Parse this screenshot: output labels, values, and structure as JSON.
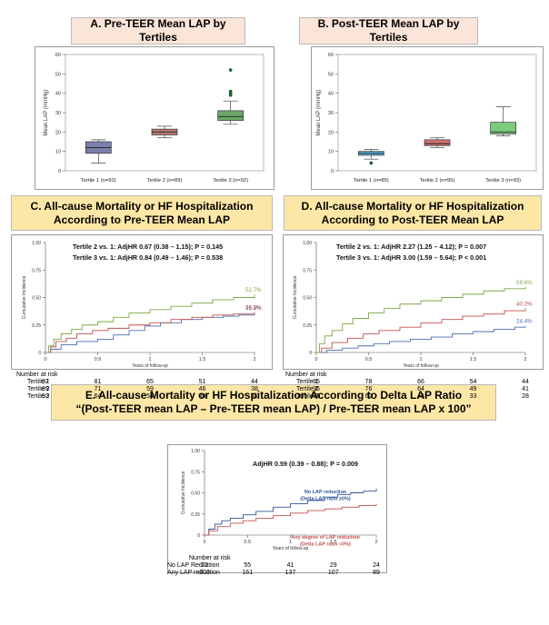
{
  "headers": {
    "a": "A. Pre-TEER Mean LAP by Tertiles",
    "b": "B. Post-TEER Mean LAP by Tertiles",
    "c_line1": "C. All-cause Mortality or HF Hospitalization",
    "c_line2": "According to Pre-TEER Mean LAP",
    "d_line1": "D. All-cause Mortality or HF Hospitalization",
    "d_line2": "According to Post-TEER Mean LAP",
    "e_line1": "E. All-cause Mortality or HF Hospitalization According to Delta LAP Ratio",
    "e_line2": "“(Post-TEER mean LAP – Pre-TEER mean LAP) / Pre-TEER mean LAP x 100”"
  },
  "chart_data": [
    {
      "id": "A",
      "type": "box",
      "ylabel": "Mean LAP (mmHg)",
      "ylim": [
        0,
        60
      ],
      "yticks": [
        0,
        10,
        20,
        30,
        40,
        50,
        60
      ],
      "categories": [
        "Tertile 1 (n=92)",
        "Tertile 2 (n=89)",
        "Tertile 3 (n=92)"
      ],
      "colors": [
        "#7a7fae",
        "#b77b73",
        "#6aa86a"
      ],
      "boxes": [
        {
          "min": 4,
          "q1": 9,
          "median": 12,
          "q3": 15,
          "max": 16,
          "outliers": []
        },
        {
          "min": 17,
          "q1": 18.5,
          "median": 20,
          "q3": 21.5,
          "max": 23,
          "outliers": []
        },
        {
          "min": 24,
          "q1": 26,
          "median": 28,
          "q3": 31,
          "max": 36,
          "outliers": [
            39,
            40,
            41,
            52
          ]
        }
      ]
    },
    {
      "id": "B",
      "type": "box",
      "ylabel": "Mean LAP (mmHg)",
      "ylim": [
        0,
        60
      ],
      "yticks": [
        0,
        10,
        20,
        30,
        40,
        50,
        60
      ],
      "categories": [
        "Tertile 1 (n=85)",
        "Tertile 2 (n=95)",
        "Tertile 3 (n=93)"
      ],
      "colors": [
        "#5ab6dd",
        "#d07070",
        "#7dcb7d"
      ],
      "boxes": [
        {
          "min": 6,
          "q1": 8,
          "median": 9,
          "q3": 10,
          "max": 11,
          "outliers": [
            4
          ]
        },
        {
          "min": 12,
          "q1": 13,
          "median": 14,
          "q3": 16,
          "max": 17,
          "outliers": []
        },
        {
          "min": 18,
          "q1": 19,
          "median": 20,
          "q3": 25,
          "max": 33,
          "outliers": []
        }
      ]
    },
    {
      "id": "C",
      "type": "line",
      "ylabel": "Cumulative Incidence",
      "xlabel": "Years of follow-up",
      "xlim": [
        0,
        2
      ],
      "ylim": [
        0,
        1
      ],
      "xticks": [
        0,
        0.5,
        1,
        1.5,
        2
      ],
      "yticks": [
        0,
        0.25,
        0.5,
        0.75,
        1
      ],
      "ytick_labels": [
        "0",
        "0.25",
        "0.50",
        "0.75",
        "1.00"
      ],
      "annotation_lines": [
        "Tertile 2 vs. 1: AdjHR 0.67 (0.38 – 1.15); P = 0.145",
        "Tertile 3 vs. 1: AdjHR 0.84 (0.49 – 1.46); P = 0.538"
      ],
      "series": [
        {
          "name": "Tertile 1",
          "color": "#4a6fb5",
          "end_label": "36.2%",
          "x": [
            0,
            0.05,
            0.15,
            0.3,
            0.5,
            0.65,
            0.8,
            0.95,
            1.1,
            1.3,
            1.5,
            1.7,
            1.85,
            2.0
          ],
          "y": [
            0,
            0.03,
            0.07,
            0.1,
            0.12,
            0.16,
            0.2,
            0.24,
            0.27,
            0.3,
            0.32,
            0.33,
            0.34,
            0.362
          ]
        },
        {
          "name": "Tertile 2",
          "color": "#c0504d",
          "end_label": "36.8%",
          "x": [
            0,
            0.05,
            0.1,
            0.2,
            0.3,
            0.45,
            0.6,
            0.8,
            1.0,
            1.2,
            1.4,
            1.6,
            1.8,
            2.0
          ],
          "y": [
            0,
            0.05,
            0.1,
            0.13,
            0.17,
            0.2,
            0.22,
            0.25,
            0.27,
            0.3,
            0.32,
            0.34,
            0.35,
            0.368
          ]
        },
        {
          "name": "Tertile 3",
          "color": "#7fa83e",
          "end_label": "52.7%",
          "x": [
            0,
            0.03,
            0.08,
            0.15,
            0.25,
            0.35,
            0.5,
            0.65,
            0.8,
            1.0,
            1.2,
            1.4,
            1.6,
            1.8,
            2.0
          ],
          "y": [
            0,
            0.06,
            0.12,
            0.17,
            0.21,
            0.25,
            0.28,
            0.32,
            0.36,
            0.39,
            0.42,
            0.45,
            0.48,
            0.5,
            0.527
          ]
        }
      ],
      "risk": {
        "title": "Number at risk",
        "rows": [
          {
            "label": "Tertile 1",
            "values": [
              "92",
              "81",
              "65",
              "51",
              "44"
            ]
          },
          {
            "label": "Tertile 2",
            "values": [
              "89",
              "71",
              "59",
              "46",
              "38"
            ]
          },
          {
            "label": "Tertile 3",
            "values": [
              "92",
              "64",
              "54",
              "39",
              "31"
            ]
          }
        ]
      }
    },
    {
      "id": "D",
      "type": "line",
      "ylabel": "Cumulative Incidence",
      "xlabel": "Years of follow-up",
      "xlim": [
        0,
        2
      ],
      "ylim": [
        0,
        1
      ],
      "xticks": [
        0,
        0.5,
        1,
        1.5,
        2
      ],
      "yticks": [
        0,
        0.25,
        0.5,
        0.75,
        1
      ],
      "ytick_labels": [
        "0",
        "0.25",
        "0.50",
        "0.75",
        "1.00"
      ],
      "annotation_lines": [
        "Tertile 2 vs. 1: AdjHR 2.27 (1.25 – 4.12); P = 0.007",
        "Tertile 3 vs. 1: AdjHR 3.00 (1.59 – 5.64); P < 0.001"
      ],
      "series": [
        {
          "name": "Tertile 1",
          "color": "#4a6fb5",
          "end_label": "24.4%",
          "x": [
            0,
            0.1,
            0.25,
            0.4,
            0.55,
            0.7,
            0.9,
            1.1,
            1.3,
            1.5,
            1.7,
            1.9,
            2.0
          ],
          "y": [
            0,
            0.02,
            0.04,
            0.06,
            0.08,
            0.1,
            0.12,
            0.14,
            0.17,
            0.19,
            0.21,
            0.23,
            0.244
          ]
        },
        {
          "name": "Tertile 2",
          "color": "#c0504d",
          "end_label": "40.2%",
          "x": [
            0,
            0.05,
            0.15,
            0.3,
            0.45,
            0.6,
            0.8,
            1.0,
            1.2,
            1.4,
            1.6,
            1.8,
            2.0
          ],
          "y": [
            0,
            0.04,
            0.09,
            0.13,
            0.17,
            0.2,
            0.23,
            0.27,
            0.3,
            0.33,
            0.35,
            0.38,
            0.402
          ]
        },
        {
          "name": "Tertile 3",
          "color": "#7fa83e",
          "end_label": "59.6%",
          "x": [
            0,
            0.03,
            0.08,
            0.15,
            0.25,
            0.35,
            0.5,
            0.65,
            0.8,
            1.0,
            1.2,
            1.4,
            1.6,
            1.8,
            2.0
          ],
          "y": [
            0,
            0.08,
            0.15,
            0.2,
            0.26,
            0.31,
            0.36,
            0.4,
            0.44,
            0.47,
            0.5,
            0.53,
            0.56,
            0.58,
            0.596
          ]
        }
      ],
      "risk": {
        "title": "Number at risk",
        "rows": [
          {
            "label": "Tertile 1",
            "values": [
              "85",
              "78",
              "66",
              "54",
              "44"
            ]
          },
          {
            "label": "Tertile 2",
            "values": [
              "95",
              "76",
              "64",
              "49",
              "41"
            ]
          },
          {
            "label": "Tertile 3",
            "values": [
              "93",
              "62",
              "48",
              "33",
              "28"
            ]
          }
        ]
      }
    },
    {
      "id": "E",
      "type": "line",
      "ylabel": "Cumulative Incidence",
      "xlabel": "Years of follow-up",
      "xlim": [
        0,
        2
      ],
      "ylim": [
        0,
        1
      ],
      "xticks": [
        0,
        0.5,
        1,
        1.5,
        2
      ],
      "yticks": [
        0,
        0.25,
        0.5,
        0.75,
        1
      ],
      "ytick_labels": [
        "0",
        "0.25",
        "0.50",
        "0.75",
        "1.00"
      ],
      "annotation_lines": [
        "AdjHR 0.59 (0.39 – 0.88); P = 0.009"
      ],
      "series": [
        {
          "name": "No LAP reduction",
          "color": "#2e5597",
          "note": [
            "No LAP reduction",
            "(Delta LAP ratio ≥0%)"
          ],
          "x": [
            0,
            0.05,
            0.12,
            0.2,
            0.3,
            0.45,
            0.6,
            0.8,
            1.0,
            1.2,
            1.4,
            1.55,
            1.7,
            1.85,
            2.0
          ],
          "y": [
            0,
            0.07,
            0.13,
            0.17,
            0.2,
            0.24,
            0.28,
            0.33,
            0.37,
            0.41,
            0.45,
            0.48,
            0.5,
            0.52,
            0.55
          ]
        },
        {
          "name": "Any LAP reduction",
          "color": "#c0504d",
          "note": [
            "Any degree of LAP reduction",
            "(Delta LAP ratio <0%)"
          ],
          "x": [
            0,
            0.05,
            0.15,
            0.3,
            0.45,
            0.6,
            0.8,
            1.0,
            1.2,
            1.4,
            1.6,
            1.8,
            2.0
          ],
          "y": [
            0,
            0.05,
            0.1,
            0.14,
            0.17,
            0.2,
            0.23,
            0.26,
            0.29,
            0.31,
            0.33,
            0.35,
            0.37
          ]
        }
      ],
      "risk": {
        "title": "Number at risk",
        "rows": [
          {
            "label": "No LAP Reduction",
            "values": [
              "70",
              "55",
              "41",
              "29",
              "24"
            ]
          },
          {
            "label": "Any LAP reduction",
            "values": [
              "203",
              "161",
              "137",
              "107",
              "89"
            ]
          }
        ]
      }
    }
  ]
}
